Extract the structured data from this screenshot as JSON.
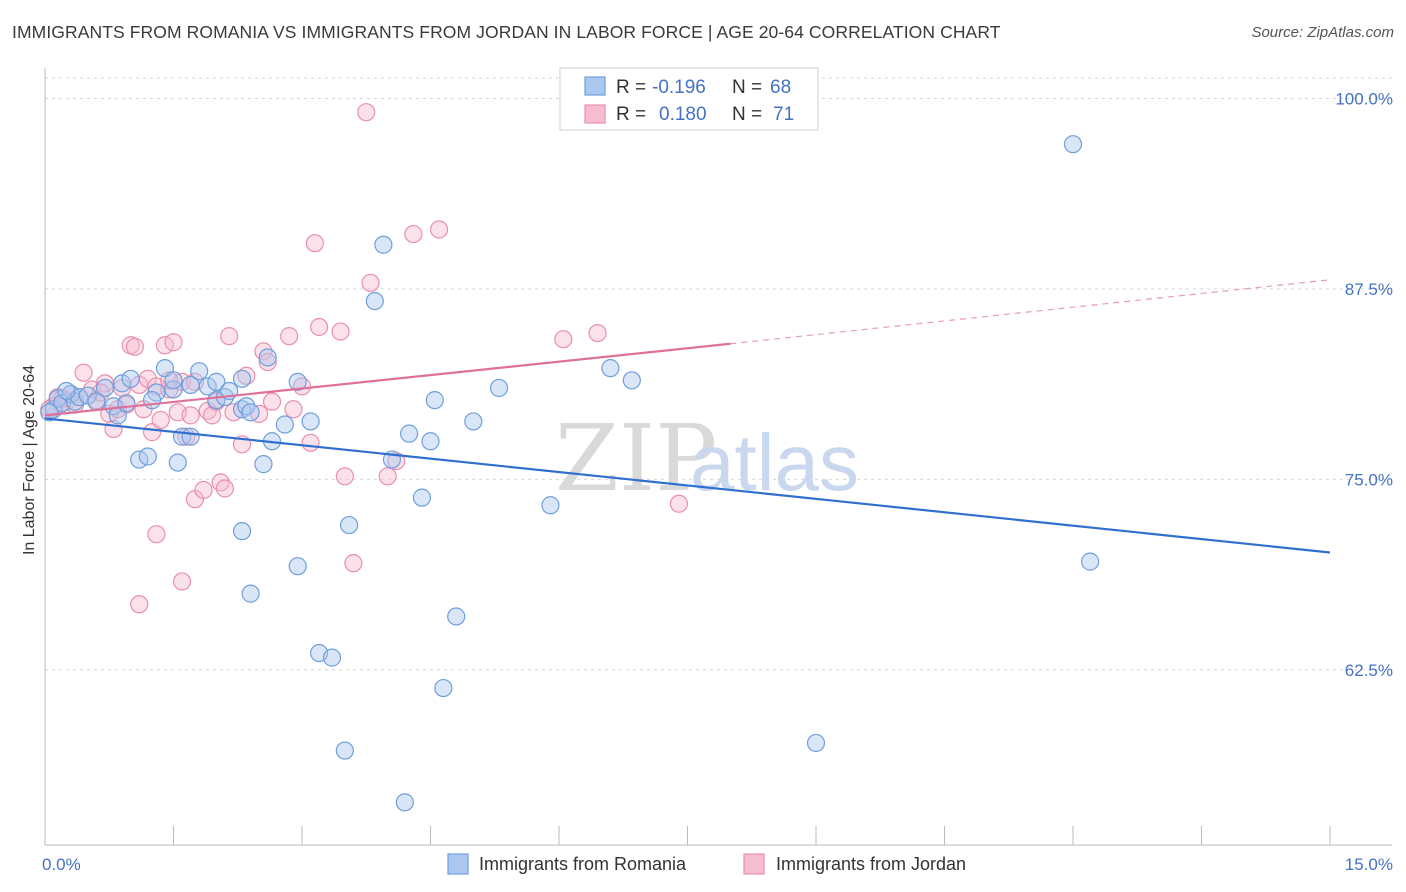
{
  "title": "IMMIGRANTS FROM ROMANIA VS IMMIGRANTS FROM JORDAN IN LABOR FORCE | AGE 20-64 CORRELATION CHART",
  "source": "Source: ZipAtlas.com",
  "watermark": {
    "zip": "ZIP",
    "atlas": "atlas"
  },
  "colors": {
    "romania_fill": "#aac7ef",
    "romania_stroke": "#6f9fdc",
    "romania_line": "#2f6fcf",
    "jordan_fill": "#f6bdd0",
    "jordan_stroke": "#ea8fae",
    "jordan_line": "#e0709a",
    "tick_text": "#4472c4",
    "grid": "#d6d6d6"
  },
  "legend": {
    "rows": [
      {
        "r_label": "R =",
        "r_value": "-0.196",
        "n_label": "N =",
        "n_value": "68"
      },
      {
        "r_label": "R =",
        "r_value": "0.180",
        "n_label": "N =",
        "n_value": "71"
      }
    ]
  },
  "chart_data": {
    "type": "scatter",
    "title": "IMMIGRANTS FROM ROMANIA VS IMMIGRANTS FROM JORDAN IN LABOR FORCE | AGE 20-64 CORRELATION CHART",
    "xlabel": "",
    "ylabel": "In Labor Force | Age 20-64",
    "xlim": [
      0,
      15
    ],
    "ylim": [
      51,
      102
    ],
    "x_tick_labels": [
      {
        "value": 0,
        "label": "0.0%"
      },
      {
        "value": 15,
        "label": "15.0%"
      }
    ],
    "x_minor_ticks": [
      1.5,
      3.0,
      4.5,
      6.0,
      7.5,
      9.0,
      10.5,
      12.0,
      13.5,
      15.0
    ],
    "y_ticks": [
      {
        "value": 100,
        "label": "100.0%"
      },
      {
        "value": 87.5,
        "label": "87.5%"
      },
      {
        "value": 75,
        "label": "75.0%"
      },
      {
        "value": 62.5,
        "label": "62.5%"
      }
    ],
    "grid": true,
    "legend_position": "top-center",
    "series": [
      {
        "name": "Immigrants from Romania",
        "r": -0.196,
        "n": 68,
        "trend": {
          "x0": 0,
          "y0": 79.0,
          "x1": 15,
          "y1": 70.2
        },
        "points": [
          [
            0.1,
            79.6
          ],
          [
            0.15,
            80.3
          ],
          [
            0.2,
            80.0
          ],
          [
            0.3,
            80.6
          ],
          [
            0.35,
            80.1
          ],
          [
            0.4,
            80.4
          ],
          [
            0.5,
            80.5
          ],
          [
            0.6,
            80.1
          ],
          [
            0.7,
            81.0
          ],
          [
            0.8,
            79.8
          ],
          [
            0.9,
            81.3
          ],
          [
            1.0,
            81.6
          ],
          [
            0.85,
            79.2
          ],
          [
            1.1,
            76.3
          ],
          [
            1.2,
            76.5
          ],
          [
            1.3,
            80.7
          ],
          [
            1.4,
            82.3
          ],
          [
            1.5,
            80.9
          ],
          [
            1.5,
            81.5
          ],
          [
            1.55,
            76.1
          ],
          [
            1.6,
            77.8
          ],
          [
            1.7,
            77.8
          ],
          [
            1.7,
            81.2
          ],
          [
            1.8,
            82.1
          ],
          [
            1.9,
            81.1
          ],
          [
            2.0,
            80.2
          ],
          [
            2.0,
            81.4
          ],
          [
            2.1,
            80.4
          ],
          [
            2.15,
            80.8
          ],
          [
            2.3,
            79.6
          ],
          [
            2.35,
            79.8
          ],
          [
            2.4,
            79.4
          ],
          [
            2.3,
            81.6
          ],
          [
            2.3,
            71.6
          ],
          [
            2.4,
            67.5
          ],
          [
            2.55,
            76.0
          ],
          [
            2.6,
            83.0
          ],
          [
            2.65,
            77.5
          ],
          [
            2.8,
            78.6
          ],
          [
            2.95,
            81.4
          ],
          [
            2.95,
            69.3
          ],
          [
            3.1,
            78.8
          ],
          [
            3.2,
            63.6
          ],
          [
            3.35,
            63.3
          ],
          [
            3.5,
            57.2
          ],
          [
            3.55,
            72.0
          ],
          [
            3.85,
            86.7
          ],
          [
            3.95,
            90.4
          ],
          [
            4.05,
            76.3
          ],
          [
            4.2,
            53.8
          ],
          [
            4.25,
            78.0
          ],
          [
            4.4,
            73.8
          ],
          [
            4.5,
            77.5
          ],
          [
            4.55,
            80.2
          ],
          [
            4.65,
            61.3
          ],
          [
            4.8,
            66.0
          ],
          [
            5.0,
            78.8
          ],
          [
            5.3,
            81.0
          ],
          [
            5.9,
            73.3
          ],
          [
            6.6,
            82.3
          ],
          [
            6.85,
            81.5
          ],
          [
            9.0,
            57.7
          ],
          [
            12.0,
            97.0
          ],
          [
            12.2,
            69.6
          ],
          [
            0.05,
            79.4
          ],
          [
            0.25,
            80.8
          ],
          [
            0.95,
            80.0
          ],
          [
            1.25,
            80.2
          ]
        ]
      },
      {
        "name": "Immigrants from Jordan",
        "r": 0.18,
        "n": 71,
        "trend": {
          "x0": 0,
          "y0": 79.2,
          "x1": 8.0,
          "y1": 83.9
        },
        "trend_dashed_to": {
          "x": 15,
          "y": 88.1
        },
        "points": [
          [
            0.1,
            79.8
          ],
          [
            0.15,
            80.4
          ],
          [
            0.25,
            80.1
          ],
          [
            0.3,
            80.6
          ],
          [
            0.4,
            80.4
          ],
          [
            0.45,
            82.0
          ],
          [
            0.55,
            80.9
          ],
          [
            0.6,
            80.2
          ],
          [
            0.7,
            81.3
          ],
          [
            0.75,
            79.3
          ],
          [
            0.8,
            78.3
          ],
          [
            0.85,
            79.6
          ],
          [
            0.9,
            81.0
          ],
          [
            1.0,
            83.8
          ],
          [
            1.05,
            83.7
          ],
          [
            1.1,
            81.2
          ],
          [
            1.15,
            79.6
          ],
          [
            1.2,
            81.6
          ],
          [
            1.25,
            78.1
          ],
          [
            1.3,
            81.1
          ],
          [
            1.35,
            78.9
          ],
          [
            1.4,
            83.8
          ],
          [
            1.45,
            80.9
          ],
          [
            1.5,
            84.0
          ],
          [
            1.55,
            79.4
          ],
          [
            1.6,
            81.4
          ],
          [
            1.7,
            79.2
          ],
          [
            1.75,
            81.4
          ],
          [
            1.3,
            71.4
          ],
          [
            1.1,
            66.8
          ],
          [
            1.6,
            68.3
          ],
          [
            1.65,
            77.8
          ],
          [
            1.75,
            73.7
          ],
          [
            1.85,
            74.3
          ],
          [
            1.9,
            79.5
          ],
          [
            1.95,
            79.2
          ],
          [
            2.05,
            74.8
          ],
          [
            2.1,
            74.4
          ],
          [
            2.15,
            84.4
          ],
          [
            2.2,
            79.4
          ],
          [
            2.3,
            77.3
          ],
          [
            2.35,
            81.8
          ],
          [
            2.5,
            79.3
          ],
          [
            2.55,
            83.4
          ],
          [
            2.6,
            82.7
          ],
          [
            2.65,
            80.1
          ],
          [
            2.85,
            84.4
          ],
          [
            2.9,
            79.6
          ],
          [
            3.0,
            81.1
          ],
          [
            3.1,
            77.4
          ],
          [
            3.15,
            90.5
          ],
          [
            3.2,
            85.0
          ],
          [
            3.45,
            84.7
          ],
          [
            3.5,
            75.2
          ],
          [
            3.6,
            69.5
          ],
          [
            3.75,
            99.1
          ],
          [
            3.8,
            87.9
          ],
          [
            4.0,
            75.2
          ],
          [
            4.1,
            76.2
          ],
          [
            4.3,
            91.1
          ],
          [
            4.6,
            91.4
          ],
          [
            6.05,
            84.2
          ],
          [
            6.45,
            84.6
          ],
          [
            7.4,
            73.4
          ],
          [
            0.05,
            79.6
          ],
          [
            0.2,
            80.3
          ],
          [
            0.35,
            79.9
          ],
          [
            0.65,
            80.7
          ],
          [
            0.95,
            79.9
          ],
          [
            1.45,
            81.5
          ],
          [
            2.0,
            80.1
          ]
        ]
      }
    ]
  },
  "bottom_legend": {
    "items": [
      {
        "label": "Immigrants from Romania"
      },
      {
        "label": "Immigrants from Jordan"
      }
    ]
  }
}
